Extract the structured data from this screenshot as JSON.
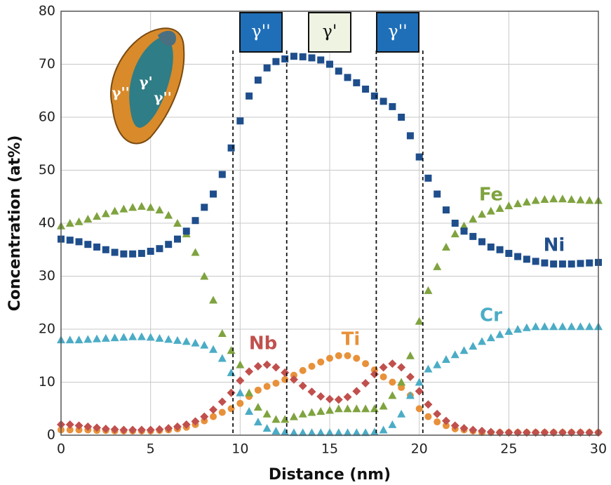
{
  "chart_data": {
    "type": "scatter",
    "xlabel": "Distance (nm)",
    "ylabel": "Concentration (at%)",
    "xlim": [
      0,
      30
    ],
    "ylim": [
      0,
      80
    ],
    "xticks": [
      0,
      5,
      10,
      15,
      20,
      25,
      30
    ],
    "yticks": [
      0,
      10,
      20,
      30,
      40,
      50,
      60,
      70,
      80
    ],
    "grid": true,
    "x": [
      0,
      0.5,
      1,
      1.5,
      2,
      2.5,
      3,
      3.5,
      4,
      4.5,
      5,
      5.5,
      6,
      6.5,
      7,
      7.5,
      8,
      8.5,
      9,
      9.5,
      10,
      10.5,
      11,
      11.5,
      12,
      12.5,
      13,
      13.5,
      14,
      14.5,
      15,
      15.5,
      16,
      16.5,
      17,
      17.5,
      18,
      18.5,
      19,
      19.5,
      20,
      20.5,
      21,
      21.5,
      22,
      22.5,
      23,
      23.5,
      24,
      24.5,
      25,
      25.5,
      26,
      26.5,
      27,
      27.5,
      28,
      28.5,
      29,
      29.5,
      30
    ],
    "series": [
      {
        "name": "Ni",
        "color": "#1f4e8c",
        "marker": "square",
        "values": [
          37,
          36.8,
          36.5,
          36,
          35.5,
          35,
          34.5,
          34.2,
          34.2,
          34.3,
          34.7,
          35.2,
          36,
          37,
          38.5,
          40.5,
          43,
          45.5,
          49.2,
          54.2,
          59.3,
          64,
          67,
          69.3,
          70.5,
          71,
          71.5,
          71.4,
          71.2,
          70.8,
          70,
          68.7,
          67.5,
          66.5,
          65.3,
          64,
          63,
          62,
          60,
          56.5,
          52.5,
          48.5,
          45.5,
          42.5,
          40,
          38.5,
          37.5,
          36.5,
          35.5,
          35,
          34.3,
          33.7,
          33.2,
          32.8,
          32.5,
          32.3,
          32.3,
          32.3,
          32.4,
          32.5,
          32.6
        ]
      },
      {
        "name": "Fe",
        "color": "#7fa33f",
        "marker": "triangle",
        "values": [
          39.5,
          40,
          40.3,
          40.8,
          41.3,
          41.8,
          42.3,
          42.7,
          43,
          43.2,
          43,
          42.5,
          41.5,
          40,
          38,
          34.5,
          30,
          25.5,
          19.2,
          16,
          13.3,
          8,
          5.3,
          4,
          3,
          3,
          3.5,
          4,
          4.3,
          4.5,
          4.7,
          5,
          5,
          5,
          5,
          5,
          5.5,
          7.5,
          10,
          15,
          21.5,
          27.3,
          31.8,
          35.5,
          38,
          39.5,
          40.8,
          41.7,
          42.3,
          42.8,
          43.3,
          43.7,
          44,
          44.3,
          44.5,
          44.6,
          44.6,
          44.5,
          44.4,
          44.3,
          44.3
        ]
      },
      {
        "name": "Cr",
        "color": "#4bacc6",
        "marker": "triangle",
        "values": [
          18,
          18,
          18,
          18.1,
          18.2,
          18.3,
          18.4,
          18.5,
          18.6,
          18.6,
          18.5,
          18.3,
          18.1,
          17.9,
          17.7,
          17.4,
          17,
          16.2,
          14.5,
          11.8,
          8,
          4.5,
          2.5,
          1.3,
          0.8,
          0.6,
          0.5,
          0.5,
          0.5,
          0.5,
          0.5,
          0.5,
          0.5,
          0.5,
          0.5,
          0.6,
          1,
          2,
          4,
          7.5,
          10,
          12.5,
          13.3,
          14.3,
          15.2,
          16,
          16.8,
          17.7,
          18.4,
          19,
          19.6,
          20,
          20.3,
          20.5,
          20.5,
          20.5,
          20.5,
          20.5,
          20.5,
          20.5,
          20.5
        ]
      },
      {
        "name": "Nb",
        "color": "#c0504d",
        "marker": "diamond",
        "values": [
          2,
          2,
          1.8,
          1.6,
          1.4,
          1.2,
          1.1,
          1,
          1,
          1,
          1,
          1.1,
          1.3,
          1.6,
          2,
          2.6,
          3.5,
          4.8,
          6.3,
          8,
          10.3,
          12,
          13,
          13.3,
          12.8,
          11.8,
          10.5,
          9.3,
          8.2,
          7.3,
          6.8,
          6.7,
          7.2,
          8.3,
          9.8,
          11.5,
          12.8,
          13.5,
          12.8,
          11,
          8.3,
          5.8,
          4,
          2.7,
          1.8,
          1.3,
          1,
          0.8,
          0.6,
          0.5,
          0.5,
          0.5,
          0.5,
          0.5,
          0.5,
          0.5,
          0.5,
          0.5,
          0.5,
          0.5,
          0.5
        ]
      },
      {
        "name": "Ti",
        "color": "#e8913a",
        "marker": "circle",
        "values": [
          1,
          1,
          1,
          1,
          0.9,
          0.9,
          0.8,
          0.8,
          0.8,
          0.8,
          0.8,
          0.9,
          1,
          1.2,
          1.5,
          2,
          2.7,
          3.5,
          4.3,
          5,
          6,
          7.3,
          8.5,
          9.2,
          9.8,
          10.5,
          11.3,
          12.2,
          13,
          13.8,
          14.5,
          15,
          15,
          14.5,
          13.5,
          12.3,
          11,
          10,
          9,
          7.5,
          5,
          3.5,
          2.5,
          1.8,
          1.2,
          1,
          0.8,
          0.5,
          0.5,
          0.5,
          0.5,
          0.5,
          0.5,
          0.5,
          0.5,
          0.5,
          0.5,
          0.5,
          0.5,
          0.5,
          0.5
        ]
      }
    ],
    "boundaries": [
      9.6,
      12.6,
      17.6,
      20.2
    ],
    "phases": [
      {
        "label": "γ''",
        "fill": "#1f6fb8",
        "text_color": "#ffffff"
      },
      {
        "label": "γ'",
        "fill": "#eef3e2",
        "text_color": "#111111"
      },
      {
        "label": "γ''",
        "fill": "#1f6fb8",
        "text_color": "#ffffff"
      }
    ],
    "inset_labels": [
      "γ''",
      "γ'",
      "γ''"
    ]
  }
}
